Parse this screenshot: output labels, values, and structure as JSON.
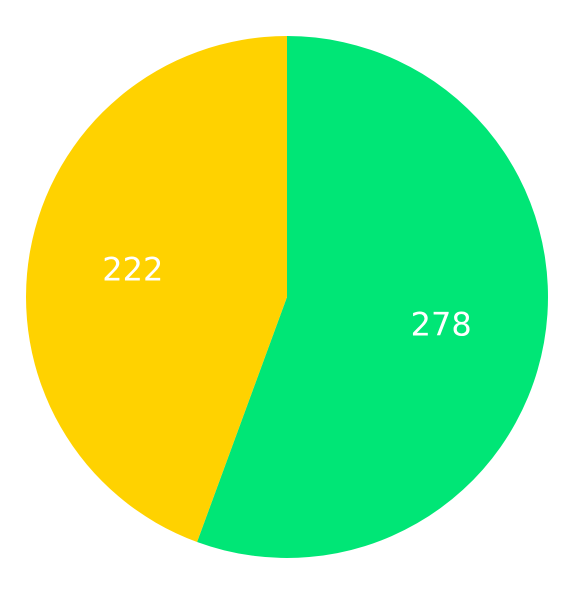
{
  "chart_data": {
    "type": "pie",
    "slices": [
      {
        "label": "278",
        "value": 278,
        "color": "#00E676"
      },
      {
        "label": "222",
        "value": 222,
        "color": "#FFD200"
      }
    ],
    "start_angle_deg": 0,
    "direction": "clockwise"
  }
}
